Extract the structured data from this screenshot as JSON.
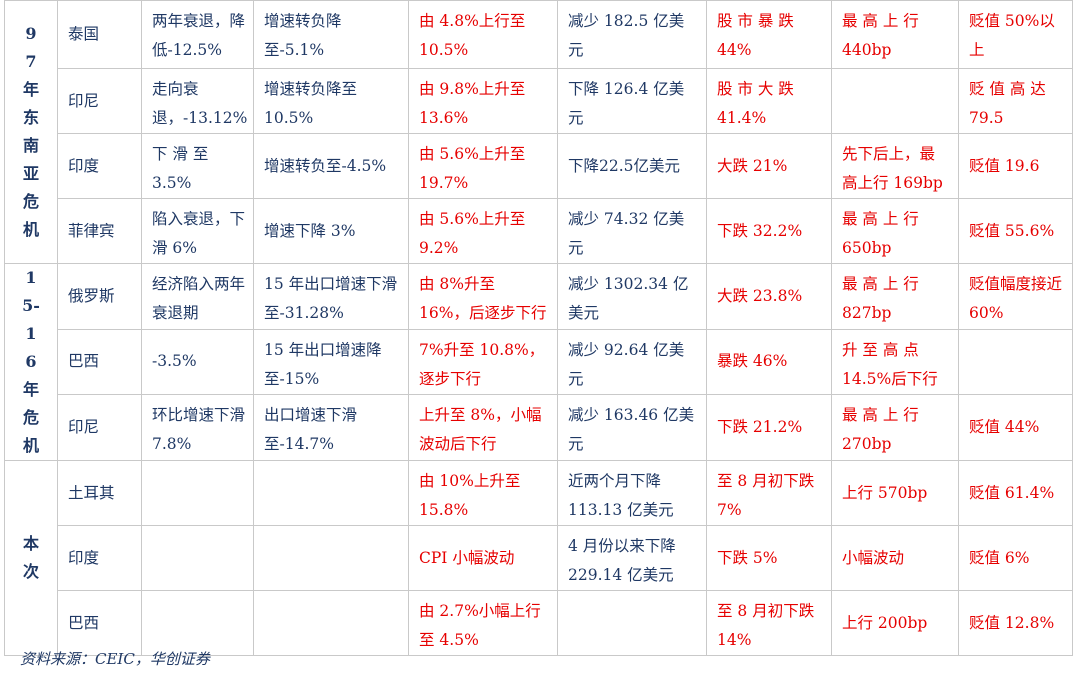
{
  "groups": [
    {
      "period": "97年东南亚危机",
      "rows": [
        {
          "country": "泰国",
          "gdp": "两年衰退，降低-12.5%",
          "exports": "增速转负降至-5.1%",
          "cpi": "由 4.8%上行至10.5%",
          "reserves": "减少 182.5 亿美元",
          "stocks": "股 市 暴 跌44%",
          "yields": "最 高 上 行440bp",
          "fx": "贬值 50%以上"
        },
        {
          "country": "印尼",
          "gdp": "走向衰退，-13.12%",
          "exports": "增速转负降至10.5%",
          "cpi": "由 9.8%上升至13.6%",
          "reserves": "下降 126.4 亿美元",
          "stocks": "股 市 大 跌41.4%",
          "yields": "",
          "fx": "贬 值 高 达79.5"
        },
        {
          "country": "印度",
          "gdp": "下 滑 至3.5%",
          "exports": "增速转负至-4.5%",
          "cpi": "由 5.6%上升至19.7%",
          "reserves": "下降22.5亿美元",
          "stocks": "大跌 21%",
          "yields": "先下后上，最高上行 169bp",
          "fx": "贬值 19.6"
        },
        {
          "country": "菲律宾",
          "gdp": "陷入衰退，下滑 6%",
          "exports": "增速下降 3%",
          "cpi": "由 5.6%上升至9.2%",
          "reserves": "减少 74.32 亿美元",
          "stocks": "下跌 32.2%",
          "yields": "最 高 上 行650bp",
          "fx": "贬值 55.6%"
        }
      ]
    },
    {
      "period": "15-16年危机",
      "rows": [
        {
          "country": "俄罗斯",
          "gdp": "经济陷入两年衰退期",
          "exports": "15 年出口增速下滑至-31.28%",
          "cpi": "由 8%升至 16%，后逐步下行",
          "reserves": "减少 1302.34 亿美元",
          "stocks": "大跌 23.8%",
          "yields": "最 高 上 行827bp",
          "fx": "贬值幅度接近 60%"
        },
        {
          "country": "巴西",
          "gdp": "-3.5%",
          "exports": "15 年出口增速降至-15%",
          "cpi": "7%升至 10.8%，逐步下行",
          "reserves": "减少 92.64 亿美元",
          "stocks": "暴跌 46%",
          "yields": "升 至 高 点14.5%后下行",
          "fx": ""
        },
        {
          "country": "印尼",
          "gdp": "环比增速下滑 7.8%",
          "exports": "出口增速下滑至-14.7%",
          "cpi": "上升至 8%，小幅波动后下行",
          "reserves": "减少 163.46 亿美元",
          "stocks": "下跌 21.2%",
          "yields": "最 高 上 行270bp",
          "fx": "贬值 44%"
        }
      ]
    },
    {
      "period": "本次",
      "rows": [
        {
          "country": "土耳其",
          "gdp": "",
          "exports": "",
          "cpi": "由 10%上升至15.8%",
          "reserves": "近两个月下降113.13 亿美元",
          "stocks": "至 8 月初下跌7%",
          "yields": "上行 570bp",
          "fx": "贬值 61.4%"
        },
        {
          "country": "印度",
          "gdp": "",
          "exports": "",
          "cpi": "CPI 小幅波动",
          "reserves": "4 月份以来下降229.14 亿美元",
          "stocks": "下跌 5%",
          "yields": "小幅波动",
          "fx": "贬值 6%"
        },
        {
          "country": "巴西",
          "gdp": "",
          "exports": "",
          "cpi": "由 2.7%小幅上行至 4.5%",
          "reserves": "",
          "stocks": "至 8 月初下跌14%",
          "yields": "上行 200bp",
          "fx": "贬值 12.8%"
        }
      ]
    }
  ],
  "source": "资料来源：CEIC，华创证券",
  "colors": {
    "text_blue": "#1f3864",
    "text_red": "#e60000",
    "border": "#c9c9c9"
  }
}
